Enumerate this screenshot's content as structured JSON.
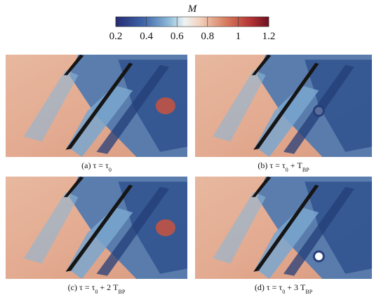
{
  "colorbar": {
    "label": "M",
    "lim": [
      0.2,
      1.2
    ],
    "ticks": [
      0.2,
      0.4,
      0.6,
      0.8,
      1,
      1.2
    ]
  },
  "panels": [
    {
      "caption": [
        "(a) τ = τ",
        "0"
      ]
    },
    {
      "caption": [
        "(b) τ = τ",
        "0",
        " + T",
        "BP"
      ]
    },
    {
      "caption": [
        "(c) τ = τ",
        "0",
        " + 2 T",
        "BP"
      ]
    },
    {
      "caption": [
        "(d) τ = τ",
        "0",
        " + 3 T",
        "BP"
      ]
    }
  ]
}
